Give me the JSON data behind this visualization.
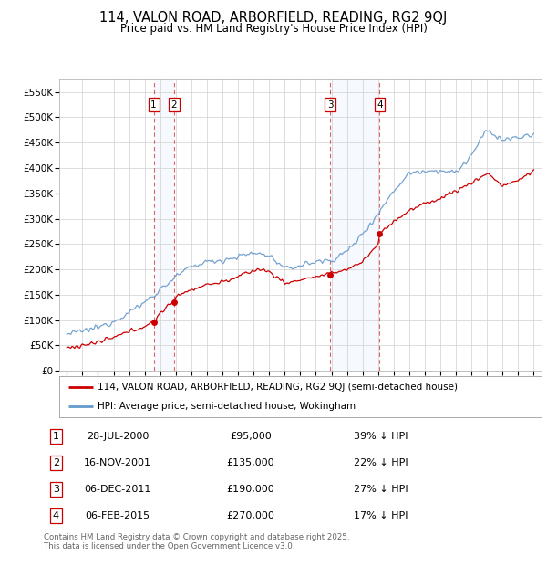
{
  "title": "114, VALON ROAD, ARBORFIELD, READING, RG2 9QJ",
  "subtitle": "Price paid vs. HM Land Registry's House Price Index (HPI)",
  "ylim": [
    0,
    575000
  ],
  "yticks": [
    0,
    50000,
    100000,
    150000,
    200000,
    250000,
    300000,
    350000,
    400000,
    450000,
    500000,
    550000
  ],
  "ytick_labels": [
    "£0",
    "£50K",
    "£100K",
    "£150K",
    "£200K",
    "£250K",
    "£300K",
    "£350K",
    "£400K",
    "£450K",
    "£500K",
    "£550K"
  ],
  "red_line_color": "#cc0000",
  "blue_line_color": "#6699cc",
  "sale_year_floats": [
    2000.58,
    2001.88,
    2011.92,
    2015.1
  ],
  "sale_prices": [
    95000,
    135000,
    190000,
    270000
  ],
  "sale_labels": [
    "1",
    "2",
    "3",
    "4"
  ],
  "footnote": "Contains HM Land Registry data © Crown copyright and database right 2025.\nThis data is licensed under the Open Government Licence v3.0.",
  "legend_red_label": "114, VALON ROAD, ARBORFIELD, READING, RG2 9QJ (semi-detached house)",
  "legend_blue_label": "HPI: Average price, semi-detached house, Wokingham",
  "table_rows": [
    [
      "1",
      "28-JUL-2000",
      "£95,000",
      "39% ↓ HPI"
    ],
    [
      "2",
      "16-NOV-2001",
      "£135,000",
      "22% ↓ HPI"
    ],
    [
      "3",
      "06-DEC-2011",
      "£190,000",
      "27% ↓ HPI"
    ],
    [
      "4",
      "06-FEB-2015",
      "£270,000",
      "17% ↓ HPI"
    ]
  ]
}
